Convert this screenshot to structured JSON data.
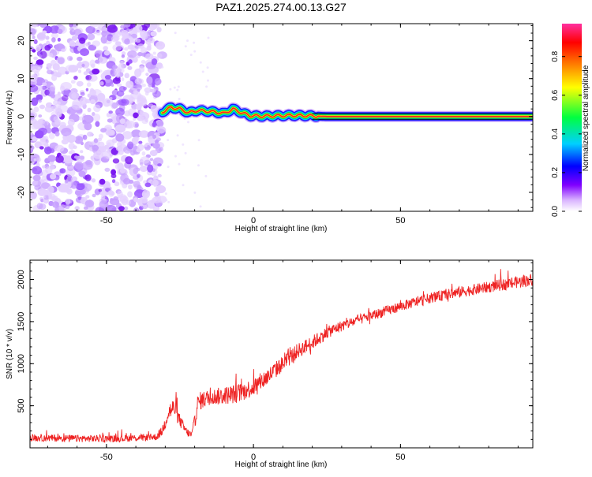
{
  "title": "PAZ1.2025.274.00.13.G27",
  "chart_data": [
    {
      "type": "heatmap",
      "title": "PAZ1.2025.274.00.13.G27",
      "xlabel": "Height of straight line (km)",
      "ylabel": "Frequency (Hz)",
      "xlim": [
        -76,
        95
      ],
      "ylim": [
        -25,
        24.5
      ],
      "xticks": [
        -50,
        0,
        50
      ],
      "xtick_labels": [
        "-50",
        "0",
        "50"
      ],
      "yticks": [
        -20,
        -10,
        0,
        10,
        20
      ],
      "ytick_labels": [
        "-20",
        "-10",
        "0",
        "10",
        "20"
      ],
      "noise_region_x": [
        -76,
        -31
      ],
      "signal_ridge": {
        "x": [
          -31,
          -28,
          -25,
          -22,
          -19,
          -16,
          -13,
          -10,
          -7,
          -4,
          -1,
          3,
          8,
          13,
          19,
          25,
          40,
          60,
          80,
          95
        ],
        "freq": [
          1.2,
          2.4,
          2.0,
          1.0,
          1.6,
          1.4,
          1.2,
          0.8,
          2.0,
          1.0,
          0.2,
          0.1,
          0.2,
          0.3,
          0.2,
          0.0,
          0.0,
          0.0,
          0.0,
          0.0
        ]
      },
      "colorbar": {
        "label": "Normalized spectral amplitude",
        "range": [
          0,
          0.97
        ],
        "ticks": [
          0.0,
          0.2,
          0.4,
          0.6,
          0.8
        ],
        "tick_labels": [
          "0.0",
          "0.2",
          "0.4",
          "0.6",
          "0.8"
        ],
        "colors": [
          "#ffffff",
          "#d9b3ff",
          "#8000ff",
          "#0000ff",
          "#00d0ff",
          "#00ff40",
          "#ffff00",
          "#ff8000",
          "#ff0000",
          "#ff30a0"
        ]
      }
    },
    {
      "type": "line",
      "xlabel": "Height of straight line (km)",
      "ylabel": "SNR (10 * v/v)",
      "xlim": [
        -76,
        95
      ],
      "ylim": [
        0,
        2230
      ],
      "xticks": [
        -50,
        0,
        50
      ],
      "xtick_labels": [
        "-50",
        "0",
        "50"
      ],
      "yticks": [
        500,
        1000,
        1500,
        2000
      ],
      "ytick_labels": [
        "500",
        "1000",
        "1500",
        "2000"
      ],
      "series": [
        {
          "name": "SNR",
          "color": "#ee2222",
          "x": [
            -76,
            -60,
            -45,
            -33,
            -31,
            -29,
            -27,
            -25,
            -23,
            -22,
            -21,
            -20,
            -19,
            -18,
            -15,
            -10,
            -5,
            0,
            5,
            10,
            15,
            20,
            25,
            30,
            40,
            50,
            60,
            70,
            80,
            90,
            95
          ],
          "values": [
            120,
            110,
            110,
            130,
            200,
            420,
            480,
            320,
            200,
            170,
            150,
            300,
            520,
            560,
            600,
            620,
            650,
            720,
            850,
            1000,
            1150,
            1250,
            1370,
            1450,
            1570,
            1680,
            1780,
            1850,
            1910,
            1970,
            2000
          ],
          "noise": [
            70,
            70,
            70,
            70,
            100,
            200,
            180,
            130,
            90,
            80,
            80,
            150,
            180,
            180,
            160,
            180,
            190,
            180,
            180,
            160,
            150,
            140,
            120,
            110,
            100,
            100,
            100,
            110,
            110,
            120,
            120
          ]
        }
      ]
    }
  ]
}
